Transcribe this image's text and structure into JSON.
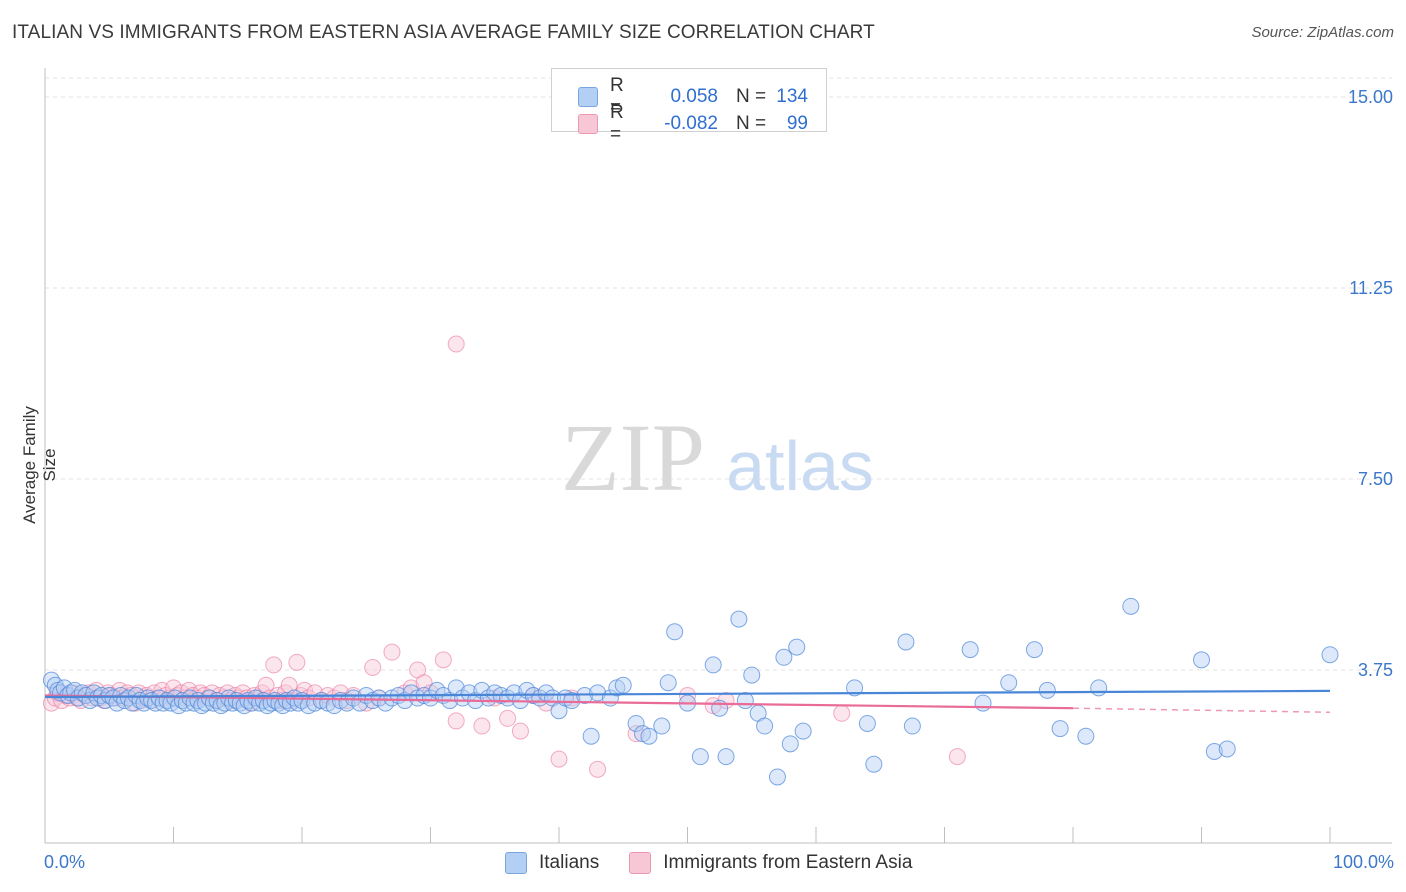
{
  "header": {
    "title": "ITALIAN VS IMMIGRANTS FROM EASTERN ASIA AVERAGE FAMILY SIZE CORRELATION CHART",
    "source": "Source: ZipAtlas.com"
  },
  "legend": {
    "rows": [
      {
        "r_label": "R =",
        "r_value": "0.058",
        "n_label": "N =",
        "n_value": "134"
      },
      {
        "r_label": "R =",
        "r_value": "-0.082",
        "n_label": "N =",
        "n_value": "99"
      }
    ]
  },
  "watermark": {
    "part1": "ZIP",
    "part2": "atlas"
  },
  "colors": {
    "blue": "#4a86d8",
    "blue_fill": "#b3cff3",
    "pink": "#e86b98",
    "pink_fill": "#f8c7d6",
    "tick_label": "#3b78c9"
  },
  "chart_data": {
    "type": "scatter",
    "title": "ITALIAN VS IMMIGRANTS FROM EASTERN ASIA AVERAGE FAMILY SIZE CORRELATION CHART",
    "xlabel": "",
    "ylabel": "Average Family Size",
    "xlim": [
      0,
      100
    ],
    "ylim": [
      0,
      15.5
    ],
    "x_tick_labels": [
      "0.0%",
      "100.0%"
    ],
    "y_ticks": [
      3.75,
      7.5,
      11.25,
      15.0
    ],
    "y_tick_labels": [
      "3.75",
      "7.50",
      "11.25",
      "15.00"
    ],
    "grid": true,
    "legend_position": "top-center",
    "series": [
      {
        "name": "Italians",
        "color": "#4a86d8",
        "trend": {
          "x": [
            0,
            100
          ],
          "y": [
            3.22,
            3.34
          ]
        },
        "points": [
          [
            0.5,
            3.55
          ],
          [
            0.8,
            3.45
          ],
          [
            1.0,
            3.35
          ],
          [
            1.2,
            3.3
          ],
          [
            1.5,
            3.4
          ],
          [
            1.8,
            3.25
          ],
          [
            2.0,
            3.3
          ],
          [
            2.3,
            3.35
          ],
          [
            2.6,
            3.2
          ],
          [
            2.9,
            3.3
          ],
          [
            3.2,
            3.25
          ],
          [
            3.5,
            3.15
          ],
          [
            3.8,
            3.3
          ],
          [
            4.1,
            3.2
          ],
          [
            4.4,
            3.25
          ],
          [
            4.7,
            3.15
          ],
          [
            5.0,
            3.25
          ],
          [
            5.3,
            3.2
          ],
          [
            5.6,
            3.1
          ],
          [
            5.9,
            3.25
          ],
          [
            6.2,
            3.15
          ],
          [
            6.5,
            3.2
          ],
          [
            6.8,
            3.1
          ],
          [
            7.1,
            3.25
          ],
          [
            7.4,
            3.15
          ],
          [
            7.7,
            3.1
          ],
          [
            8.0,
            3.2
          ],
          [
            8.3,
            3.15
          ],
          [
            8.6,
            3.1
          ],
          [
            8.9,
            3.2
          ],
          [
            9.2,
            3.1
          ],
          [
            9.5,
            3.15
          ],
          [
            9.8,
            3.1
          ],
          [
            10.1,
            3.2
          ],
          [
            10.4,
            3.05
          ],
          [
            10.7,
            3.15
          ],
          [
            11.0,
            3.1
          ],
          [
            11.3,
            3.2
          ],
          [
            11.6,
            3.1
          ],
          [
            11.9,
            3.15
          ],
          [
            12.2,
            3.05
          ],
          [
            12.5,
            3.1
          ],
          [
            12.8,
            3.2
          ],
          [
            13.1,
            3.1
          ],
          [
            13.4,
            3.15
          ],
          [
            13.7,
            3.05
          ],
          [
            14.0,
            3.1
          ],
          [
            14.3,
            3.2
          ],
          [
            14.6,
            3.1
          ],
          [
            14.9,
            3.15
          ],
          [
            15.2,
            3.1
          ],
          [
            15.5,
            3.05
          ],
          [
            15.8,
            3.15
          ],
          [
            16.1,
            3.1
          ],
          [
            16.4,
            3.2
          ],
          [
            16.7,
            3.1
          ],
          [
            17.0,
            3.15
          ],
          [
            17.3,
            3.05
          ],
          [
            17.6,
            3.1
          ],
          [
            17.9,
            3.15
          ],
          [
            18.2,
            3.1
          ],
          [
            18.5,
            3.05
          ],
          [
            18.8,
            3.15
          ],
          [
            19.1,
            3.1
          ],
          [
            19.4,
            3.2
          ],
          [
            19.7,
            3.1
          ],
          [
            20.0,
            3.15
          ],
          [
            20.5,
            3.05
          ],
          [
            21.0,
            3.1
          ],
          [
            21.5,
            3.15
          ],
          [
            22.0,
            3.1
          ],
          [
            22.5,
            3.05
          ],
          [
            23.0,
            3.15
          ],
          [
            23.5,
            3.1
          ],
          [
            24.0,
            3.2
          ],
          [
            24.5,
            3.1
          ],
          [
            25.0,
            3.25
          ],
          [
            25.5,
            3.15
          ],
          [
            26.0,
            3.2
          ],
          [
            26.5,
            3.1
          ],
          [
            27.0,
            3.2
          ],
          [
            27.5,
            3.25
          ],
          [
            28.0,
            3.15
          ],
          [
            28.5,
            3.3
          ],
          [
            29.0,
            3.2
          ],
          [
            29.5,
            3.25
          ],
          [
            30.0,
            3.2
          ],
          [
            30.5,
            3.35
          ],
          [
            31.0,
            3.25
          ],
          [
            31.5,
            3.15
          ],
          [
            32.0,
            3.4
          ],
          [
            32.5,
            3.2
          ],
          [
            33.0,
            3.3
          ],
          [
            33.5,
            3.15
          ],
          [
            34.0,
            3.35
          ],
          [
            34.5,
            3.2
          ],
          [
            35.0,
            3.3
          ],
          [
            35.5,
            3.25
          ],
          [
            36.0,
            3.2
          ],
          [
            36.5,
            3.3
          ],
          [
            37.0,
            3.15
          ],
          [
            37.5,
            3.35
          ],
          [
            38.0,
            3.25
          ],
          [
            38.5,
            3.2
          ],
          [
            39.0,
            3.3
          ],
          [
            39.5,
            3.2
          ],
          [
            40.0,
            2.95
          ],
          [
            40.5,
            3.2
          ],
          [
            41.0,
            3.15
          ],
          [
            42.0,
            3.25
          ],
          [
            42.5,
            2.45
          ],
          [
            43.0,
            3.3
          ],
          [
            44.0,
            3.2
          ],
          [
            44.5,
            3.4
          ],
          [
            45.0,
            3.45
          ],
          [
            46.0,
            2.7
          ],
          [
            46.5,
            2.5
          ],
          [
            47.0,
            2.45
          ],
          [
            48.0,
            2.65
          ],
          [
            48.5,
            3.5
          ],
          [
            49.0,
            4.5
          ],
          [
            50.0,
            3.1
          ],
          [
            51.0,
            2.05
          ],
          [
            52.0,
            3.85
          ],
          [
            52.5,
            3.0
          ],
          [
            53.0,
            2.05
          ],
          [
            54.0,
            4.75
          ],
          [
            54.5,
            3.15
          ],
          [
            55.0,
            3.65
          ],
          [
            55.5,
            2.9
          ],
          [
            56.0,
            2.65
          ],
          [
            57.0,
            1.65
          ],
          [
            57.5,
            4.0
          ],
          [
            58.0,
            2.3
          ],
          [
            58.5,
            4.2
          ],
          [
            59.0,
            2.55
          ],
          [
            63.0,
            3.4
          ],
          [
            64.0,
            2.7
          ],
          [
            64.5,
            1.9
          ],
          [
            67.0,
            4.3
          ],
          [
            67.5,
            2.65
          ],
          [
            72.0,
            4.15
          ],
          [
            73.0,
            3.1
          ],
          [
            75.0,
            3.5
          ],
          [
            77.0,
            4.15
          ],
          [
            78.0,
            3.35
          ],
          [
            79.0,
            2.6
          ],
          [
            81.0,
            2.45
          ],
          [
            82.0,
            3.4
          ],
          [
            84.5,
            5.0
          ],
          [
            90.0,
            3.95
          ],
          [
            91.0,
            2.15
          ],
          [
            92.0,
            2.2
          ],
          [
            100.0,
            4.05
          ]
        ]
      },
      {
        "name": "Immigrants from Eastern Asia",
        "color": "#e86b98",
        "trend": {
          "x": [
            0,
            80
          ],
          "y": [
            3.25,
            3.0
          ]
        },
        "trend_dashed": {
          "x": [
            80,
            100
          ],
          "y": [
            3.0,
            2.92
          ]
        },
        "points": [
          [
            0.5,
            3.1
          ],
          [
            0.8,
            3.2
          ],
          [
            1.0,
            3.3
          ],
          [
            1.3,
            3.15
          ],
          [
            1.6,
            3.25
          ],
          [
            1.9,
            3.2
          ],
          [
            2.2,
            3.3
          ],
          [
            2.5,
            3.2
          ],
          [
            2.8,
            3.15
          ],
          [
            3.1,
            3.25
          ],
          [
            3.4,
            3.3
          ],
          [
            3.7,
            3.2
          ],
          [
            4.0,
            3.35
          ],
          [
            4.3,
            3.2
          ],
          [
            4.6,
            3.15
          ],
          [
            4.9,
            3.3
          ],
          [
            5.2,
            3.25
          ],
          [
            5.5,
            3.2
          ],
          [
            5.8,
            3.35
          ],
          [
            6.1,
            3.2
          ],
          [
            6.4,
            3.3
          ],
          [
            6.7,
            3.25
          ],
          [
            7.0,
            3.1
          ],
          [
            7.3,
            3.3
          ],
          [
            7.6,
            3.2
          ],
          [
            7.9,
            3.25
          ],
          [
            8.2,
            3.15
          ],
          [
            8.5,
            3.3
          ],
          [
            8.8,
            3.2
          ],
          [
            9.1,
            3.35
          ],
          [
            9.4,
            3.25
          ],
          [
            9.7,
            3.2
          ],
          [
            10.0,
            3.4
          ],
          [
            10.3,
            3.25
          ],
          [
            10.6,
            3.3
          ],
          [
            10.9,
            3.2
          ],
          [
            11.2,
            3.35
          ],
          [
            11.5,
            3.25
          ],
          [
            11.8,
            3.2
          ],
          [
            12.1,
            3.3
          ],
          [
            12.4,
            3.25
          ],
          [
            12.7,
            3.2
          ],
          [
            13.0,
            3.3
          ],
          [
            13.3,
            3.15
          ],
          [
            13.6,
            3.25
          ],
          [
            13.9,
            3.2
          ],
          [
            14.2,
            3.3
          ],
          [
            14.5,
            3.15
          ],
          [
            14.8,
            3.25
          ],
          [
            15.1,
            3.2
          ],
          [
            15.4,
            3.3
          ],
          [
            15.7,
            3.2
          ],
          [
            16.0,
            3.1
          ],
          [
            16.3,
            3.25
          ],
          [
            16.6,
            3.2
          ],
          [
            16.9,
            3.3
          ],
          [
            17.2,
            3.45
          ],
          [
            17.5,
            3.2
          ],
          [
            17.8,
            3.85
          ],
          [
            18.1,
            3.25
          ],
          [
            18.4,
            3.15
          ],
          [
            18.7,
            3.3
          ],
          [
            19.0,
            3.45
          ],
          [
            19.3,
            3.15
          ],
          [
            19.6,
            3.9
          ],
          [
            19.9,
            3.25
          ],
          [
            20.2,
            3.35
          ],
          [
            20.5,
            3.2
          ],
          [
            21.0,
            3.3
          ],
          [
            21.5,
            3.15
          ],
          [
            22.0,
            3.25
          ],
          [
            22.5,
            3.2
          ],
          [
            23.0,
            3.3
          ],
          [
            23.5,
            3.15
          ],
          [
            24.0,
            3.25
          ],
          [
            25.0,
            3.1
          ],
          [
            25.5,
            3.8
          ],
          [
            26.0,
            3.2
          ],
          [
            27.0,
            4.1
          ],
          [
            28.0,
            3.3
          ],
          [
            28.5,
            3.4
          ],
          [
            29.0,
            3.75
          ],
          [
            29.5,
            3.5
          ],
          [
            30.0,
            3.3
          ],
          [
            31.0,
            3.95
          ],
          [
            32.0,
            2.75
          ],
          [
            32.0,
            10.15
          ],
          [
            34.0,
            2.65
          ],
          [
            35.0,
            3.2
          ],
          [
            36.0,
            2.8
          ],
          [
            37.0,
            2.55
          ],
          [
            38.0,
            3.25
          ],
          [
            39.0,
            3.1
          ],
          [
            40.0,
            2.0
          ],
          [
            41.0,
            3.2
          ],
          [
            43.0,
            1.8
          ],
          [
            46.0,
            2.5
          ],
          [
            50.0,
            3.25
          ],
          [
            52.0,
            3.05
          ],
          [
            53.0,
            3.15
          ],
          [
            62.0,
            2.9
          ],
          [
            71.0,
            2.05
          ]
        ]
      }
    ]
  },
  "bottom_legend": {
    "items": [
      {
        "label": "Italians"
      },
      {
        "label": "Immigrants from Eastern Asia"
      }
    ]
  }
}
